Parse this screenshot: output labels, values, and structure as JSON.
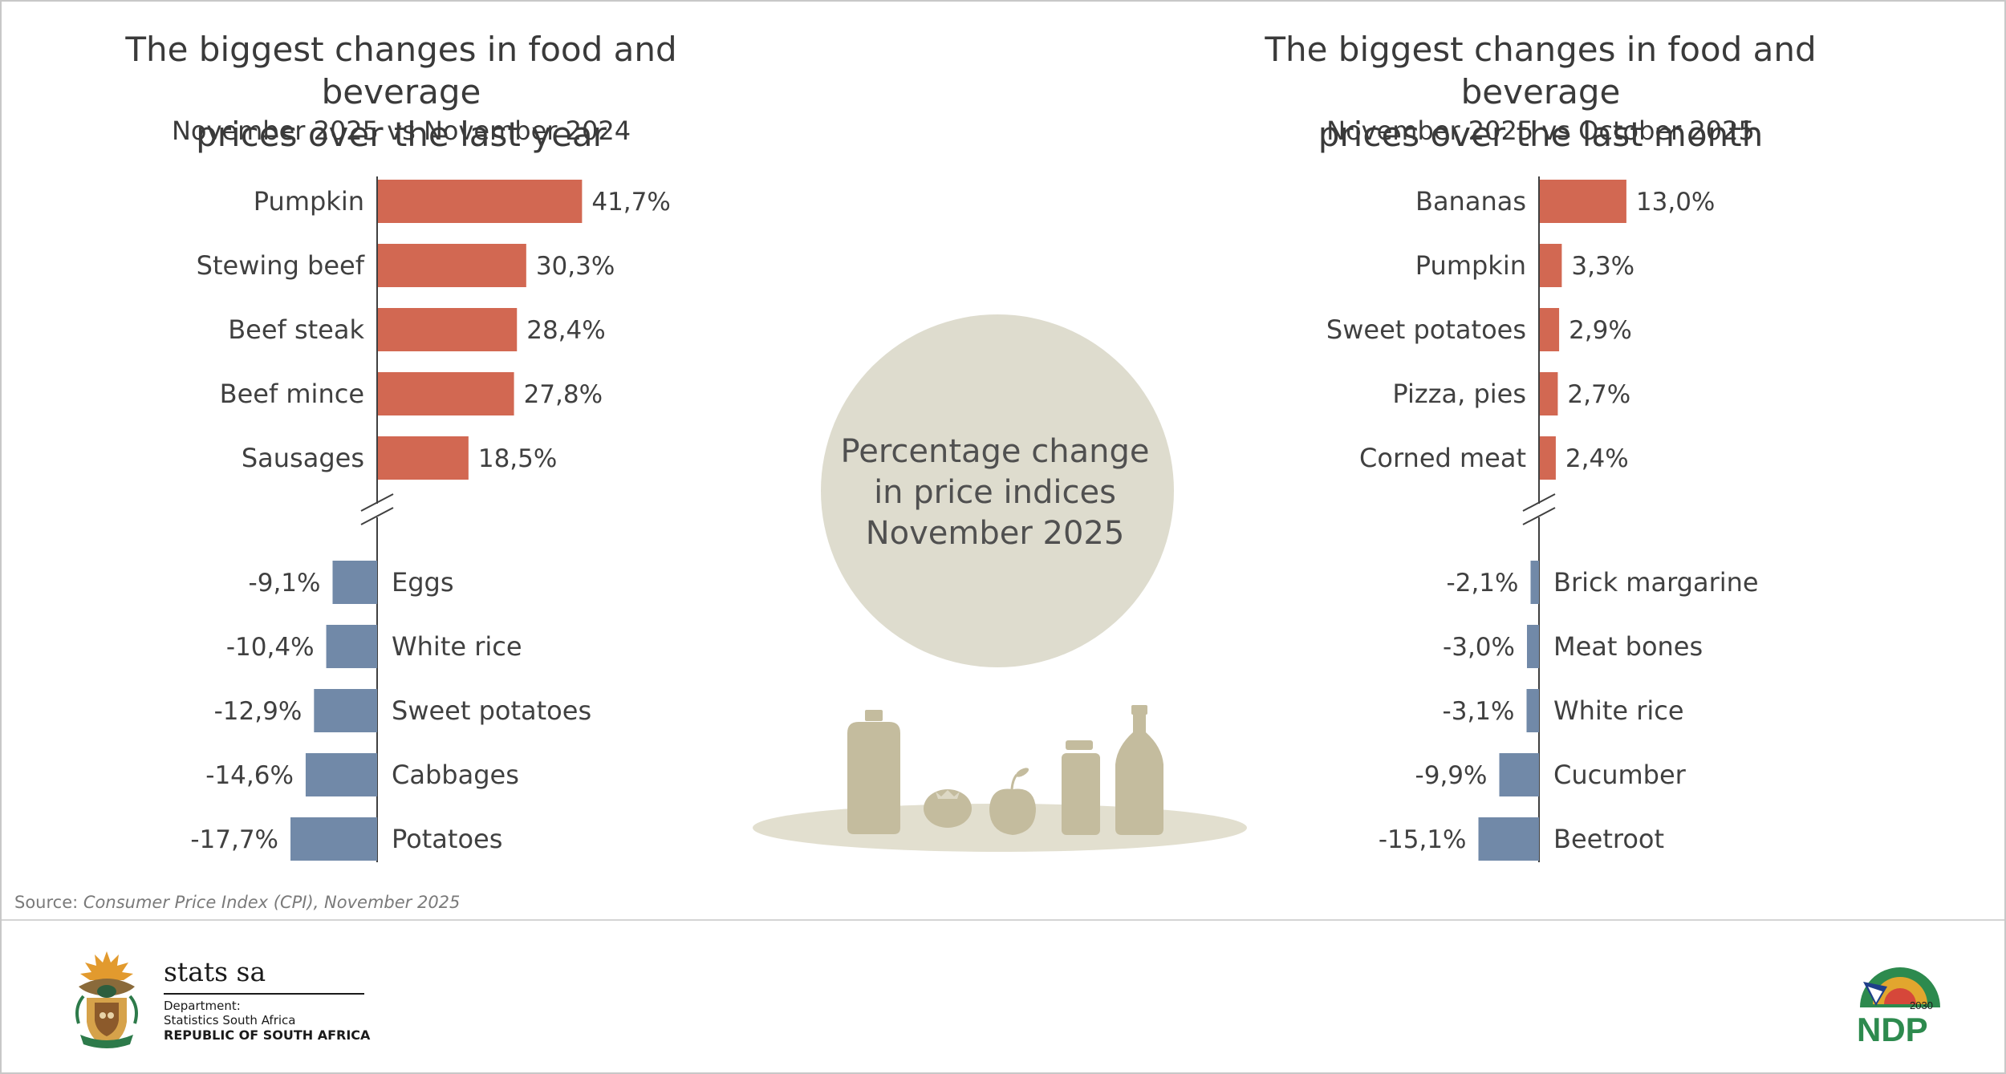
{
  "left": {
    "title_line1": "The biggest changes in food and beverage",
    "title_line2": "prices over the last year",
    "subtitle": "November 2025 vs November 2024"
  },
  "right": {
    "title_line1": "The biggest changes in food and beverage",
    "title_line2": "prices over the last month",
    "subtitle": "November 2025 vs October 2025"
  },
  "center": {
    "line1": "Percentage change",
    "line2": "in price indices",
    "line3": "November 2025"
  },
  "source": {
    "prefix": "Source: ",
    "text": "Consumer Price Index (CPI), November 2025"
  },
  "footer": {
    "brand": "stats sa",
    "department": "Department:",
    "organisation": "Statistics South Africa",
    "country": "REPUBLIC OF SOUTH AFRICA",
    "ndp_text": "NDP",
    "ndp_year": "2030"
  },
  "colors": {
    "increase": "#d26852",
    "decrease": "#7189a8",
    "axis": "#404040",
    "circle": "#dedcce",
    "icons": "#c4bc9e",
    "plate": "#e2dfcf"
  },
  "chart_data": [
    {
      "type": "bar",
      "orientation": "horizontal",
      "axis_break": true,
      "increases": {
        "categories": [
          "Pumpkin",
          "Stewing beef",
          "Beef steak",
          "Beef mince",
          "Sausages"
        ],
        "values": [
          41.7,
          30.3,
          28.4,
          27.8,
          18.5
        ],
        "labels": [
          "41,7%",
          "30,3%",
          "28,4%",
          "27,8%",
          "18,5%"
        ]
      },
      "decreases": {
        "categories": [
          "Eggs",
          "White rice",
          "Sweet potatoes",
          "Cabbages",
          "Potatoes"
        ],
        "values": [
          -9.1,
          -10.4,
          -12.9,
          -14.6,
          -17.7
        ],
        "labels": [
          "-9,1%",
          "-10,4%",
          "-12,9%",
          "-14,6%",
          "-17,7%"
        ]
      }
    },
    {
      "type": "bar",
      "orientation": "horizontal",
      "axis_break": true,
      "increases": {
        "categories": [
          "Bananas",
          "Pumpkin",
          "Sweet potatoes",
          "Pizza, pies",
          "Corned meat"
        ],
        "values": [
          13.0,
          3.3,
          2.9,
          2.7,
          2.4
        ],
        "labels": [
          "13,0%",
          "3,3%",
          "2,9%",
          "2,7%",
          "2,4%"
        ]
      },
      "decreases": {
        "categories": [
          "Brick margarine",
          "Meat bones",
          "White rice",
          "Cucumber",
          "Beetroot"
        ],
        "values": [
          -2.1,
          -3.0,
          -3.1,
          -9.9,
          -15.1
        ],
        "labels": [
          "-2,1%",
          "-3,0%",
          "-3,1%",
          "-9,9%",
          "-15,1%"
        ]
      }
    }
  ]
}
